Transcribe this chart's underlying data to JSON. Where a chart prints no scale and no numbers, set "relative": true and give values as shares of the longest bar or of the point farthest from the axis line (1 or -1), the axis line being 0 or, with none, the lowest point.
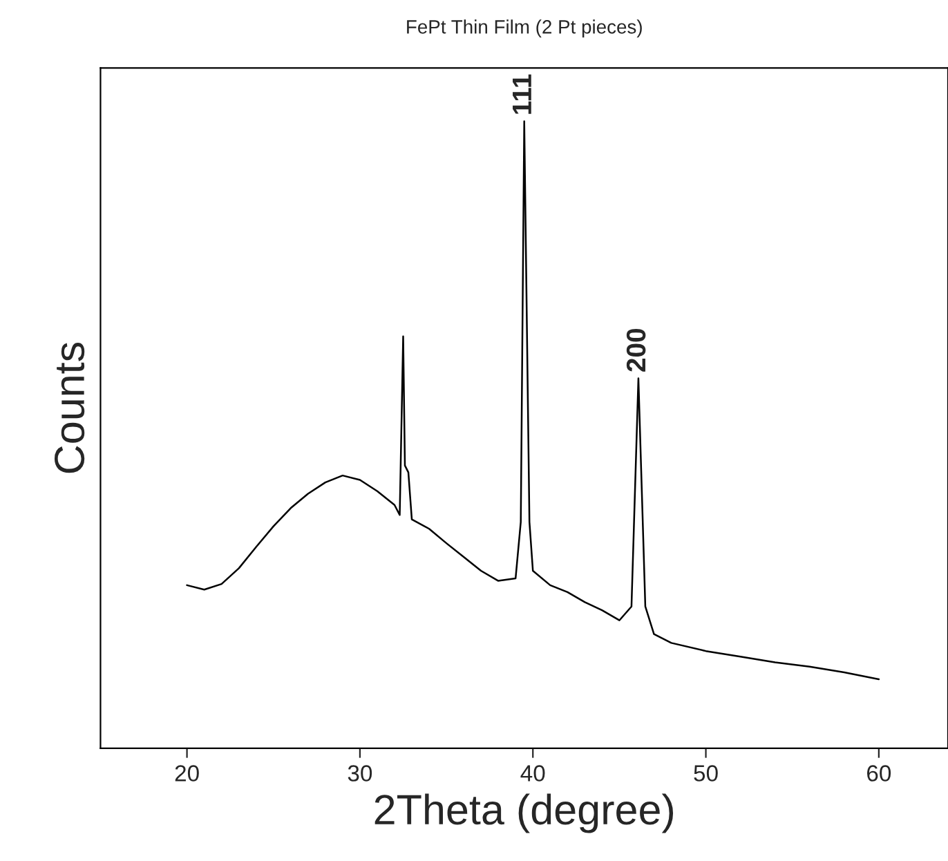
{
  "chart_data": {
    "type": "line",
    "title": "FePt Thin Film (2 Pt pieces)",
    "xlabel": "2Theta (degree)",
    "ylabel": "Counts",
    "relative": true,
    "xlim": [
      15,
      64
    ],
    "xticks": [
      20,
      30,
      40,
      50,
      60
    ],
    "series": [
      {
        "color": "#000000",
        "x": [
          20,
          21,
          22,
          23,
          24,
          25,
          26,
          27,
          28,
          29,
          30,
          31,
          32,
          32.3,
          32.5,
          32.6,
          32.8,
          33,
          34,
          35,
          36,
          37,
          38,
          39,
          39.3,
          39.5,
          39.8,
          40,
          41,
          42,
          43,
          44,
          45,
          45.7,
          46.1,
          46.5,
          47,
          48,
          50,
          52,
          54,
          56,
          58,
          60
        ],
        "values": [
          0.26,
          0.253,
          0.262,
          0.287,
          0.321,
          0.354,
          0.383,
          0.406,
          0.424,
          0.435,
          0.428,
          0.41,
          0.388,
          0.372,
          0.657,
          0.451,
          0.44,
          0.365,
          0.35,
          0.327,
          0.305,
          0.283,
          0.267,
          0.271,
          0.361,
          1,
          0.361,
          0.283,
          0.26,
          0.249,
          0.233,
          0.22,
          0.204,
          0.226,
          0.59,
          0.226,
          0.182,
          0.168,
          0.155,
          0.146,
          0.137,
          0.13,
          0.121,
          0.11
        ]
      }
    ],
    "annotations": [
      {
        "text": "111",
        "x": 39.5,
        "y": 1
      },
      {
        "text": "200",
        "x": 46.1,
        "y": 0.59
      }
    ],
    "grid": false,
    "legend": false
  }
}
